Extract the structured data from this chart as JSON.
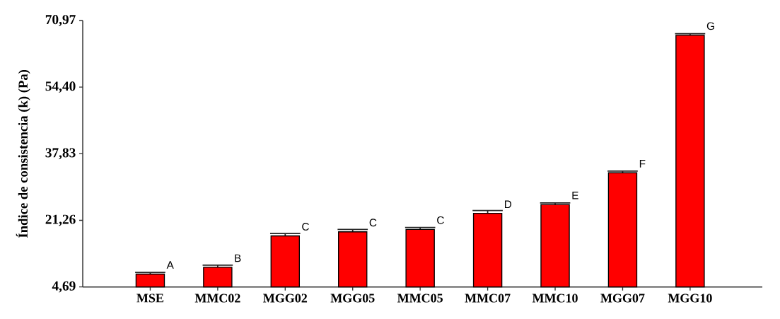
{
  "chart_data": {
    "type": "bar",
    "ylabel": "Índice de consistencia (k) (Pa)",
    "categories": [
      "MSE",
      "MMC02",
      "MGG02",
      "MGG05",
      "MMC05",
      "MMC07",
      "MMC10",
      "MGG07",
      "MGG10"
    ],
    "values": [
      7.9,
      9.6,
      17.4,
      18.4,
      19.0,
      23.0,
      25.2,
      33.1,
      67.3
    ],
    "errors": [
      0.4,
      0.5,
      0.6,
      0.6,
      0.5,
      0.7,
      0.4,
      0.4,
      0.4
    ],
    "color": "#ff0000",
    "ylim": [
      4.69,
      70.97
    ],
    "yticks": [
      {
        "value": 4.69,
        "label": "4,69"
      },
      {
        "value": 21.26,
        "label": "21,26"
      },
      {
        "value": 37.83,
        "label": "37,83"
      },
      {
        "value": 54.4,
        "label": "54,40"
      },
      {
        "value": 70.97,
        "label": "70,97"
      }
    ],
    "annotations": [
      {
        "text": "A",
        "x": "MSE",
        "y": 7.9
      },
      {
        "text": "B",
        "x": "MMC02",
        "y": 9.6
      },
      {
        "text": "C",
        "x": "MGG02",
        "y": 17.4
      },
      {
        "text": "C",
        "x": "MGG05",
        "y": 18.4
      },
      {
        "text": "C",
        "x": "MMC05",
        "y": 19.0
      },
      {
        "text": "D",
        "x": "MMC07",
        "y": 23.0
      },
      {
        "text": "E",
        "x": "MMC10",
        "y": 25.2
      },
      {
        "text": "F",
        "x": "MGG07",
        "y": 33.1
      },
      {
        "text": "G",
        "x": "MGG10",
        "y": 67.3
      }
    ]
  }
}
